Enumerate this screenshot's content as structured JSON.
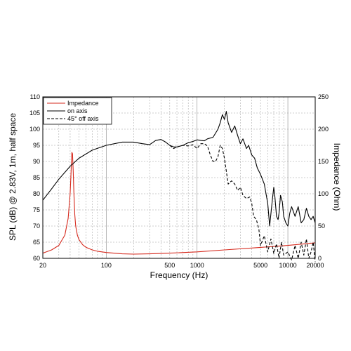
{
  "chart_data": {
    "type": "line",
    "xlabel": "Frequency (Hz)",
    "ylabel": "SPL (dB) @ 2.83V, 1m, half space",
    "y2label": "Impedance (Ohm)",
    "x_scale": "log",
    "xlim": [
      20,
      20000
    ],
    "ylim": [
      60,
      110
    ],
    "y2lim": [
      0,
      250
    ],
    "grid": true,
    "legend_position": "top-left",
    "x_ticks": [
      "20",
      "100",
      "500",
      "1000",
      "5000",
      "10000",
      "20000"
    ],
    "y_ticks": [
      "60",
      "65",
      "70",
      "75",
      "80",
      "85",
      "90",
      "95",
      "100",
      "105",
      "110"
    ],
    "y2_ticks": [
      "0",
      "50",
      "100",
      "150",
      "200",
      "250"
    ],
    "series": [
      {
        "name": "Impedance",
        "axis": "right",
        "color": "#d62a1e",
        "style": "solid",
        "x": [
          20,
          25,
          30,
          35,
          38,
          40,
          41,
          41.8,
          42.5,
          43.2,
          44,
          45,
          46,
          48,
          50,
          55,
          60,
          70,
          80,
          100,
          150,
          200,
          300,
          500,
          1000,
          2000,
          5000,
          10000,
          20000
        ],
        "y": [
          8,
          13,
          20,
          36,
          62,
          100,
          135,
          164,
          162,
          135,
          100,
          68,
          50,
          36,
          29,
          21,
          17,
          13,
          11,
          9,
          7,
          6.5,
          7,
          8,
          10,
          13,
          17,
          20,
          24
        ]
      },
      {
        "name": "on axis",
        "axis": "left",
        "color": "#000000",
        "style": "solid",
        "x": [
          20,
          25,
          30,
          40,
          50,
          70,
          100,
          150,
          200,
          250,
          300,
          350,
          400,
          450,
          500,
          550,
          600,
          700,
          800,
          900,
          1000,
          1100,
          1200,
          1300,
          1500,
          1700,
          1800,
          1900,
          2000,
          2100,
          2200,
          2400,
          2600,
          2800,
          3000,
          3200,
          3500,
          3700,
          4000,
          4300,
          4600,
          5000,
          5500,
          6000,
          6300,
          6800,
          7000,
          7200,
          7500,
          7800,
          8000,
          8300,
          8700,
          9000,
          9500,
          10000,
          10500,
          11000,
          12000,
          13000,
          14000,
          15000,
          16000,
          17000,
          18000,
          19000,
          20000
        ],
        "y": [
          78,
          81.5,
          84.5,
          88.5,
          91,
          93.5,
          95,
          96,
          96,
          95.5,
          95.2,
          96.5,
          96.8,
          96,
          95,
          94.5,
          94.5,
          95,
          95.8,
          96.2,
          96.7,
          96.5,
          96.4,
          97,
          97.5,
          100,
          102,
          104.5,
          103,
          105.5,
          102,
          99,
          101,
          98,
          95.5,
          97,
          94,
          95,
          92,
          91,
          88,
          86,
          83,
          77,
          70,
          79,
          82,
          79,
          73,
          72,
          74,
          79.5,
          77.5,
          73,
          71,
          70,
          74,
          76,
          73,
          76,
          71,
          72,
          75.5,
          73,
          72,
          73,
          71
        ]
      },
      {
        "name": "45° off axis",
        "axis": "left",
        "color": "#000000",
        "style": "dashed",
        "x": [
          500,
          550,
          600,
          700,
          800,
          900,
          1000,
          1100,
          1200,
          1300,
          1400,
          1500,
          1600,
          1700,
          1800,
          1900,
          2000,
          2100,
          2200,
          2400,
          2600,
          2800,
          3000,
          3200,
          3500,
          3800,
          4000,
          4200,
          4500,
          4800,
          5000,
          5500,
          6000,
          6500,
          7000,
          7500,
          8000,
          8500,
          9000,
          10000,
          11000,
          12000,
          13000,
          14000,
          15000,
          16000,
          17000,
          18000,
          19000,
          20000
        ],
        "y": [
          95,
          94,
          94.5,
          95,
          94.8,
          95.2,
          94,
          95.5,
          95.5,
          94.8,
          92,
          90,
          90,
          91.5,
          95,
          94,
          91,
          87,
          83,
          84,
          83,
          81,
          82,
          79.5,
          78.5,
          79,
          77,
          73,
          72,
          69,
          64,
          67,
          62,
          66,
          61.5,
          64.5,
          60,
          65,
          61,
          62,
          59.5,
          64,
          60,
          65,
          61,
          66,
          60,
          62,
          65,
          59
        ]
      }
    ]
  }
}
